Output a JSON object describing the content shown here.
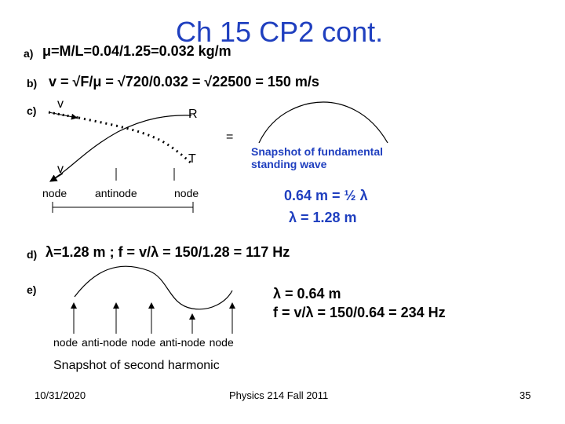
{
  "title": "Ch 15 CP2 cont.",
  "part_a": {
    "label": "a)",
    "text": "μ=M/L=0.04/1.25=0.032 kg/m"
  },
  "part_b": {
    "label": "b)",
    "text": "v = √F/μ = √720/0.032 = √22500 = 150 m/s"
  },
  "part_c": {
    "label": "c)",
    "v_top": "v",
    "R": "R",
    "equals": "=",
    "v_bottom": "v",
    "T": "T",
    "node_left": "node",
    "antinode": "antinode",
    "node_right": "node",
    "snapshot_caption_line1": "Snapshot of fundamental",
    "snapshot_caption_line2": "standing wave",
    "half_lambda": "0.64 m = ½ λ",
    "lambda": "λ = 1.28 m"
  },
  "part_d": {
    "label": "d)",
    "text": "λ=1.28 m ; f = v/λ = 150/1.28 = 117 Hz"
  },
  "part_e": {
    "label": "e)",
    "lambda": "λ = 0.64 m",
    "freq": "f = v/λ = 150/0.64 = 234 Hz",
    "node_labels": "node anti-node node anti-node node",
    "caption": "Snapshot of second harmonic"
  },
  "footer": {
    "date": "10/31/2020",
    "course": "Physics 214 Fall 2011",
    "page": "35"
  }
}
